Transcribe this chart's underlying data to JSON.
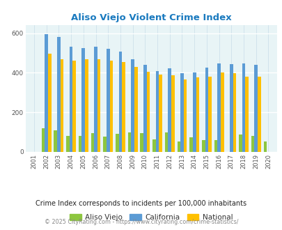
{
  "title": "Aliso Viejo Violent Crime Index",
  "years": [
    2001,
    2002,
    2003,
    2004,
    2005,
    2006,
    2007,
    2008,
    2009,
    2010,
    2011,
    2012,
    2013,
    2014,
    2015,
    2016,
    2017,
    2018,
    2019,
    2020
  ],
  "aliso_viejo": [
    0,
    118,
    108,
    82,
    80,
    95,
    78,
    92,
    98,
    95,
    62,
    98,
    52,
    72,
    60,
    58,
    0,
    88,
    82,
    52
  ],
  "california": [
    0,
    595,
    580,
    530,
    525,
    532,
    522,
    507,
    468,
    440,
    410,
    424,
    398,
    400,
    426,
    446,
    445,
    448,
    440,
    0
  ],
  "national": [
    0,
    496,
    470,
    462,
    470,
    470,
    462,
    455,
    428,
    405,
    390,
    387,
    367,
    376,
    380,
    400,
    397,
    381,
    380,
    0
  ],
  "colors": {
    "aliso_viejo": "#8dc63f",
    "california": "#5b9bd5",
    "national": "#ffc000"
  },
  "plot_bg": "#e8f4f6",
  "title_color": "#1a7abf",
  "subtitle": "Crime Index corresponds to incidents per 100,000 inhabitants",
  "footer": "© 2025 CityRating.com - https://www.cityrating.com/crime-statistics/",
  "subtitle_color": "#222222",
  "footer_color": "#888888",
  "ylim": [
    0,
    640
  ],
  "yticks": [
    0,
    200,
    400,
    600
  ],
  "bar_width": 0.26,
  "figsize": [
    4.06,
    3.3
  ],
  "dpi": 100
}
